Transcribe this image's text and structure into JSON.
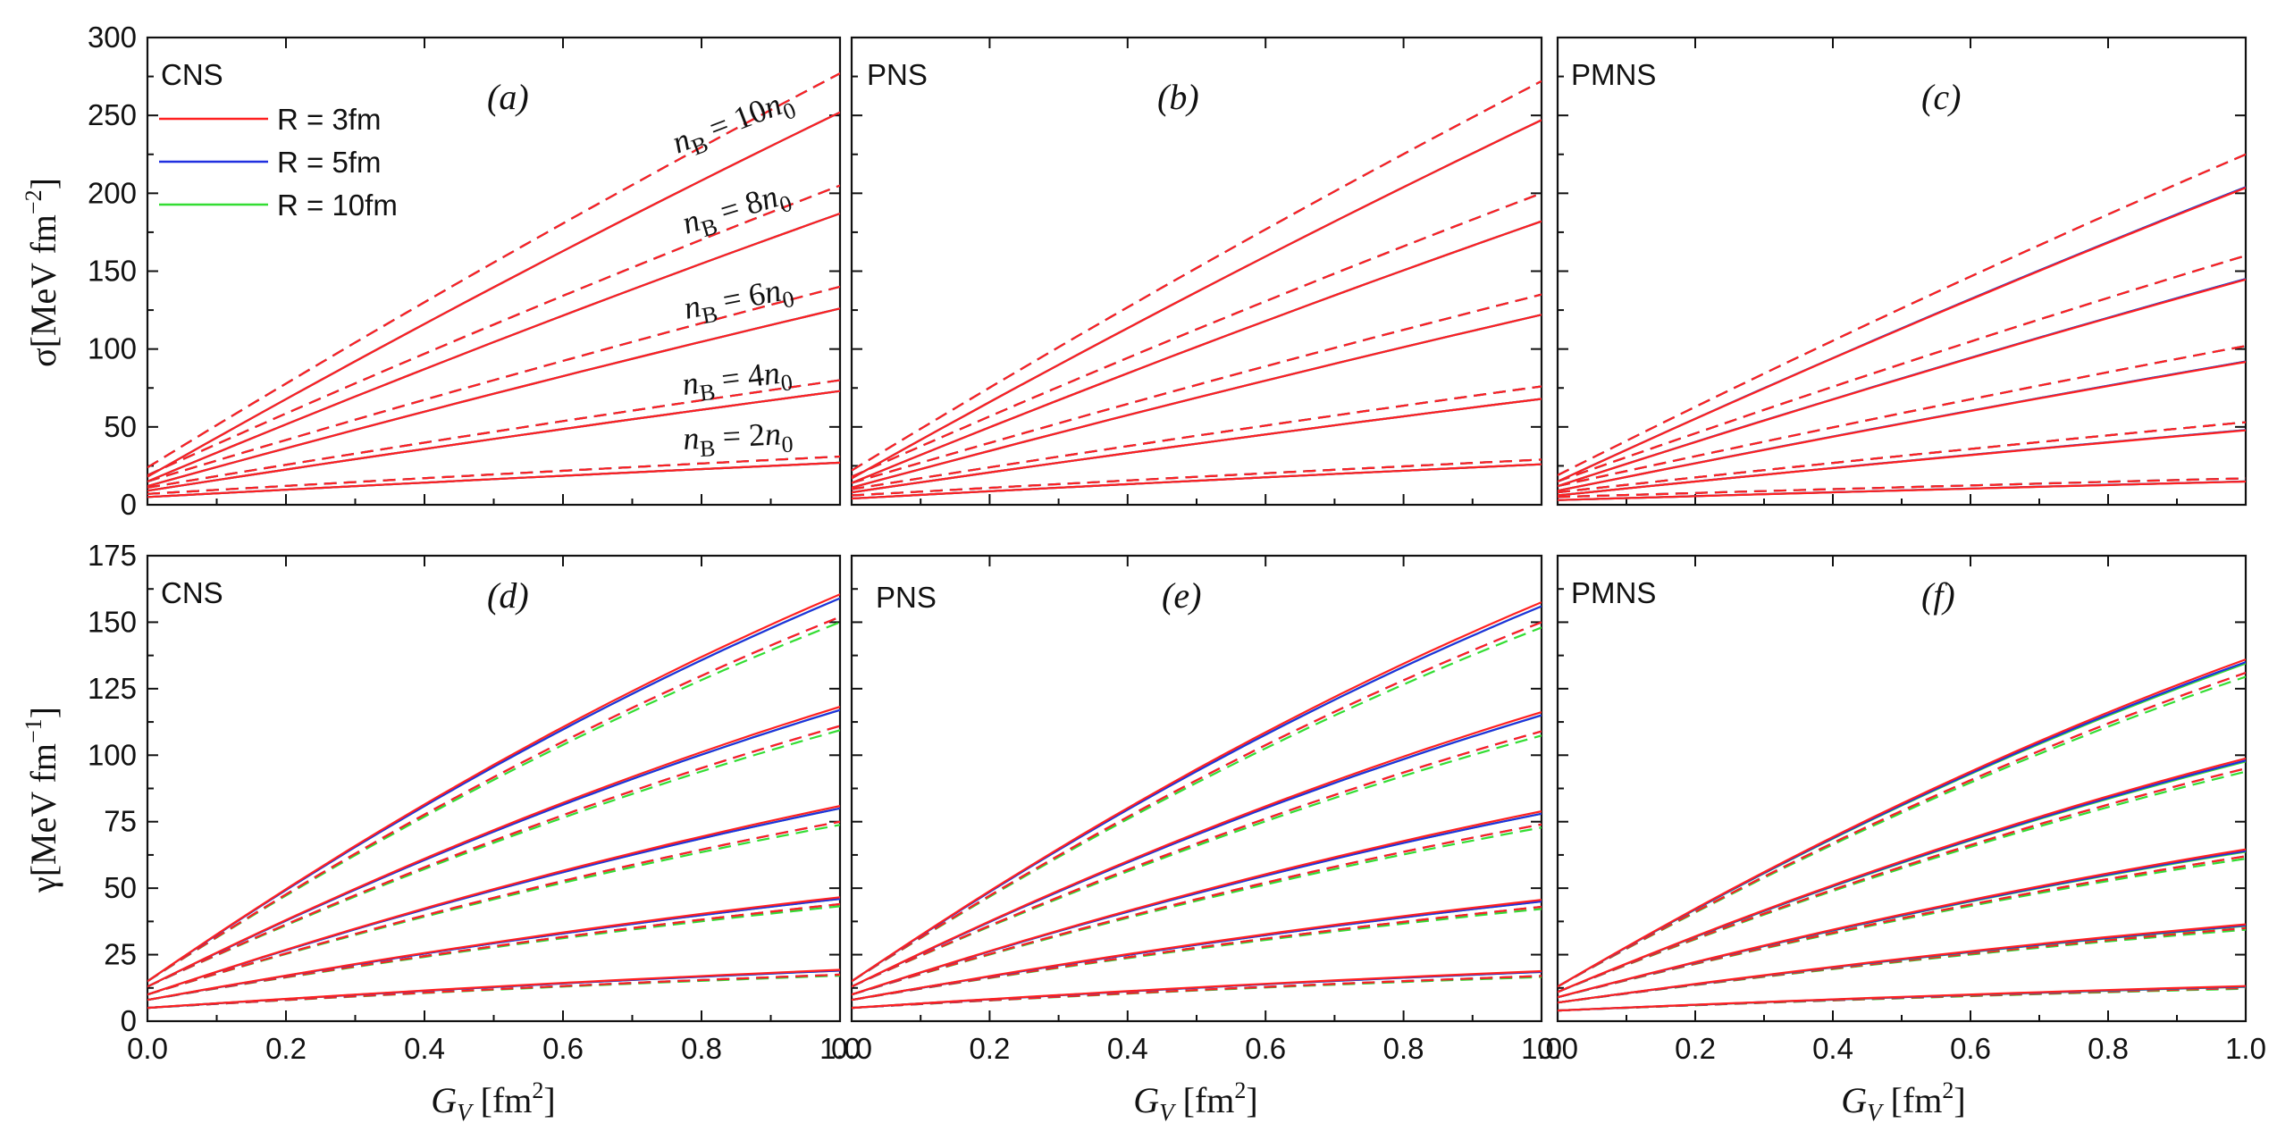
{
  "figure": {
    "title": "",
    "x_axis_label": "G_V [fm²]",
    "legend": [
      {
        "label": "R = 3fm",
        "color": "#ff2020"
      },
      {
        "label": "R = 5fm",
        "color": "#2030e0"
      },
      {
        "label": "R = 10fm",
        "color": "#33dd33"
      }
    ],
    "solid_dashed_note": "solid and dashed line styles"
  },
  "chart_data": [
    {
      "type": "line",
      "panel": "(a)",
      "tag": "CNS",
      "row": "sigma",
      "ylabel": "σ[MeV fm⁻²]",
      "xlabel": "G_V [fm²]",
      "xlim": [
        0,
        1
      ],
      "ylim": [
        0,
        300
      ],
      "xticks": [
        "0.0",
        "0.2",
        "0.4",
        "0.6",
        "0.8",
        "1.0"
      ],
      "yticks": [
        "0",
        "50",
        "100",
        "150",
        "200",
        "250",
        "300"
      ],
      "annotations": [
        "n_B = 10n_0",
        "n_B = 8n_0",
        "n_B = 6n_0",
        "n_B = 4n_0",
        "n_B = 2n_0"
      ],
      "solid_start": [
        5,
        9,
        12,
        15,
        18
      ],
      "solid_end": [
        27,
        73,
        126,
        187,
        252
      ],
      "dashed_start": [
        7,
        11,
        15,
        19,
        24
      ],
      "dashed_end": [
        31,
        80,
        140,
        205,
        277
      ],
      "dashed_offset": [
        0,
        0,
        0
      ],
      "solid_offset": [
        0,
        0,
        0
      ]
    },
    {
      "type": "line",
      "panel": "(b)",
      "tag": "PNS",
      "row": "sigma",
      "xlim": [
        0,
        1
      ],
      "ylim": [
        0,
        300
      ],
      "solid_start": [
        4,
        8,
        11,
        14,
        17
      ],
      "solid_end": [
        26,
        68,
        122,
        182,
        247
      ],
      "dashed_start": [
        6,
        10,
        14,
        18,
        22
      ],
      "dashed_end": [
        29,
        76,
        135,
        200,
        272
      ],
      "dashed_offset": [
        0,
        0,
        0
      ],
      "solid_offset": [
        0,
        0,
        0
      ]
    },
    {
      "type": "line",
      "panel": "(c)",
      "tag": "PMNS",
      "row": "sigma",
      "xlim": [
        0,
        1
      ],
      "ylim": [
        0,
        300
      ],
      "solid_start": [
        3,
        6,
        9,
        12,
        15
      ],
      "solid_end": [
        15,
        48,
        92,
        145,
        204
      ],
      "dashed_start": [
        5,
        8,
        12,
        15,
        19
      ],
      "dashed_end": [
        17,
        53,
        102,
        160,
        225
      ],
      "dashed_offset": [
        0,
        0,
        0
      ],
      "solid_offset": [
        -0.5,
        0,
        0
      ]
    },
    {
      "type": "line",
      "panel": "(d)",
      "tag": "CNS",
      "row": "gamma",
      "ylabel": "γ[MeV fm⁻¹]",
      "xlabel": "G_V [fm²]",
      "xlim": [
        0,
        1
      ],
      "ylim": [
        0,
        175
      ],
      "xticks": [
        "0.0",
        "0.2",
        "0.4",
        "0.6",
        "0.8",
        "1.0"
      ],
      "yticks": [
        "0",
        "25",
        "50",
        "75",
        "100",
        "125",
        "150",
        "175"
      ],
      "solid_start": [
        5,
        8,
        10,
        13,
        15
      ],
      "solid_end": [
        19,
        46,
        80,
        117,
        159
      ],
      "dashed_start": [
        5,
        8,
        10,
        13,
        15
      ],
      "dashed_end": [
        17.5,
        44,
        75,
        111,
        152
      ],
      "dashed_offset": [
        0,
        0,
        -2
      ],
      "solid_offset": [
        1.5,
        0,
        0
      ]
    },
    {
      "type": "line",
      "panel": "(e)",
      "tag": "PNS",
      "row": "gamma",
      "xlim": [
        0,
        1
      ],
      "ylim": [
        0,
        175
      ],
      "solid_start": [
        5,
        8,
        10,
        13,
        15
      ],
      "solid_end": [
        18.5,
        45,
        78,
        115,
        156
      ],
      "dashed_start": [
        5,
        8,
        10,
        13,
        15
      ],
      "dashed_end": [
        17,
        43,
        74,
        109,
        150
      ],
      "dashed_offset": [
        0,
        0,
        -2
      ],
      "solid_offset": [
        1.5,
        0,
        0
      ]
    },
    {
      "type": "line",
      "panel": "(f)",
      "tag": "PMNS",
      "row": "gamma",
      "xlim": [
        0,
        1
      ],
      "ylim": [
        0,
        175
      ],
      "solid_start": [
        4,
        7,
        9,
        11,
        13
      ],
      "solid_end": [
        13,
        36,
        64,
        98,
        135
      ],
      "dashed_start": [
        4,
        7,
        9,
        11,
        13
      ],
      "dashed_end": [
        12.5,
        35,
        62,
        95,
        131
      ],
      "dashed_offset": [
        0,
        0,
        -1.5
      ],
      "solid_offset": [
        1,
        0,
        -0.5
      ]
    }
  ],
  "panels_text": {
    "a": {
      "tag": "CNS",
      "letter": "(a)"
    },
    "b": {
      "tag": "PNS",
      "letter": "(b)"
    },
    "c": {
      "tag": "PMNS",
      "letter": "(c)"
    },
    "d": {
      "tag": "CNS",
      "letter": "(d)"
    },
    "e": {
      "tag": "PNS",
      "letter": "(e)"
    },
    "f": {
      "tag": "PMNS",
      "letter": "(f)"
    }
  },
  "axes_text": {
    "sigma_label_main": "σ[MeV fm",
    "sigma_label_sup": "−2",
    "gamma_label_main": "γ[MeV fm",
    "gamma_label_sup": "−1",
    "close_bracket": "]",
    "x_label_main": "G",
    "x_label_sub": "V",
    "x_label_unit": " [fm",
    "x_label_sup": "2",
    "sigma_ticks": [
      "0",
      "50",
      "100",
      "150",
      "200",
      "250",
      "300"
    ],
    "gamma_ticks": [
      "0",
      "25",
      "50",
      "75",
      "100",
      "125",
      "150",
      "175"
    ],
    "x_ticks": [
      "0.0",
      "0.2",
      "0.4",
      "0.6",
      "0.8",
      "1.0"
    ]
  },
  "annotations_text": {
    "n10": {
      "pre": "n",
      "sub": "B",
      "mid": " = 10",
      "n": "n",
      "sub0": "0"
    },
    "n8": {
      "pre": "n",
      "sub": "B",
      "mid": " = 8",
      "n": "n",
      "sub0": "0"
    },
    "n6": {
      "pre": "n",
      "sub": "B",
      "mid": " = 6",
      "n": "n",
      "sub0": "0"
    },
    "n4": {
      "pre": "n",
      "sub": "B",
      "mid": " = 4",
      "n": "n",
      "sub0": "0"
    },
    "n2": {
      "pre": "n",
      "sub": "B",
      "mid": " = 2",
      "n": "n",
      "sub0": "0"
    }
  }
}
